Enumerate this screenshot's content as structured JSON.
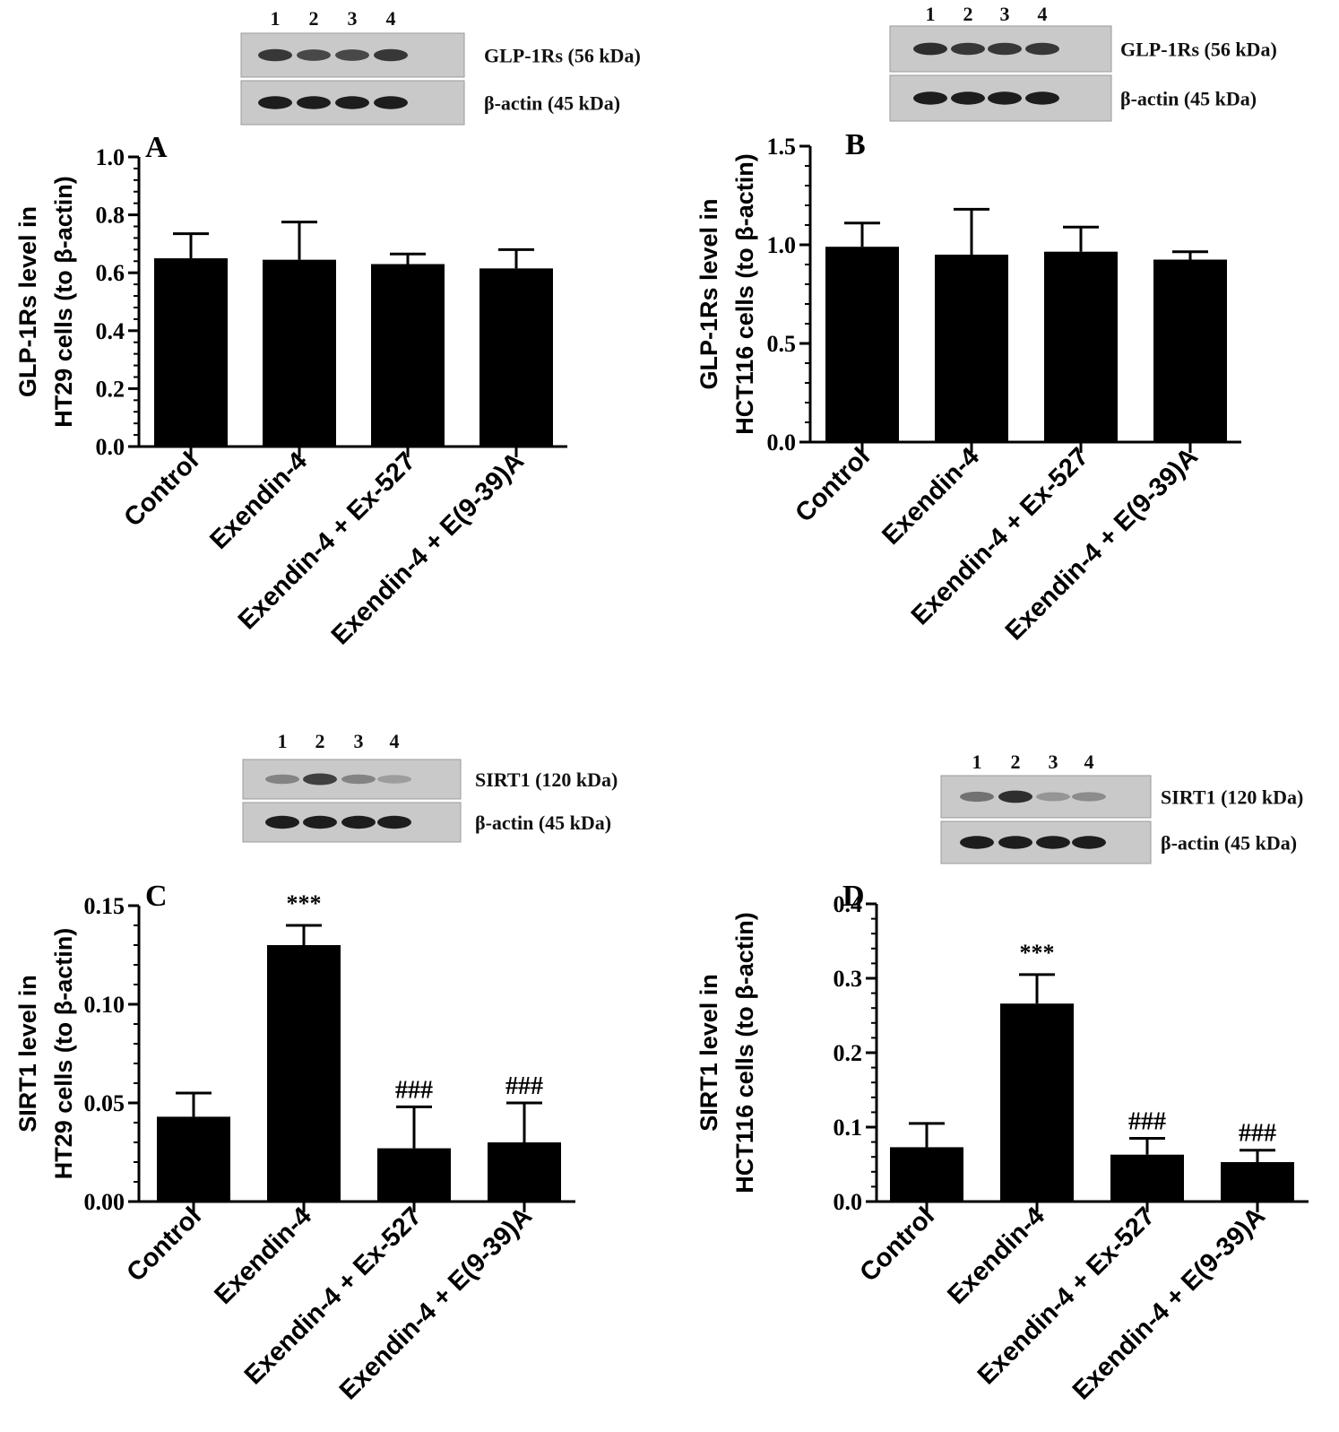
{
  "panels": [
    {
      "id": "A",
      "blot": {
        "lanes": [
          "1",
          "2",
          "3",
          "4"
        ],
        "rows": [
          {
            "label": "GLP-1Rs (56 kDa)",
            "band_intensity": [
              0.85,
              0.75,
              0.75,
              0.85
            ]
          },
          {
            "label": "β-actin (45 kDa)",
            "band_intensity": [
              1.0,
              1.0,
              1.0,
              1.0
            ]
          }
        ]
      },
      "chart_data": {
        "type": "bar",
        "panel_label": "A",
        "ylabel_lines": [
          "GLP-1Rs level in",
          "HT29 cells (to β-actin)"
        ],
        "categories": [
          "Control",
          "Exendin-4",
          "Exendin-4 + Ex-527",
          "Exendin-4 + E(9-39)A"
        ],
        "values": [
          0.65,
          0.645,
          0.63,
          0.615
        ],
        "errors": [
          0.085,
          0.13,
          0.035,
          0.065
        ],
        "annotations": [
          "",
          "",
          "",
          ""
        ],
        "ylim": [
          0,
          1.0
        ],
        "yticks": [
          0,
          0.2,
          0.4,
          0.6,
          0.8,
          1.0
        ],
        "ytick_labels": [
          "0.0",
          "0.2",
          "0.4",
          "0.6",
          "0.8",
          "1.0"
        ]
      }
    },
    {
      "id": "B",
      "blot": {
        "lanes": [
          "1",
          "2",
          "3",
          "4"
        ],
        "rows": [
          {
            "label": "GLP-1Rs (56 kDa)",
            "band_intensity": [
              0.9,
              0.85,
              0.85,
              0.85
            ]
          },
          {
            "label": "β-actin (45 kDa)",
            "band_intensity": [
              1.0,
              1.0,
              1.0,
              1.0
            ]
          }
        ]
      },
      "chart_data": {
        "type": "bar",
        "panel_label": "B",
        "ylabel_lines": [
          "GLP-1Rs level in",
          "HCT116 cells (to β-actin)"
        ],
        "categories": [
          "Control",
          "Exendin-4",
          "Exendin-4 + Ex-527",
          "Exendin-4 + E(9-39)A"
        ],
        "values": [
          0.99,
          0.95,
          0.965,
          0.925
        ],
        "errors": [
          0.12,
          0.23,
          0.125,
          0.04
        ],
        "annotations": [
          "",
          "",
          "",
          ""
        ],
        "ylim": [
          0,
          1.5
        ],
        "yticks": [
          0,
          0.5,
          1.0,
          1.5
        ],
        "ytick_labels": [
          "0.0",
          "0.5",
          "1.0",
          "1.5"
        ]
      }
    },
    {
      "id": "C",
      "blot": {
        "lanes": [
          "1",
          "2",
          "3",
          "4"
        ],
        "rows": [
          {
            "label": "SIRT1 (120 kDa)",
            "band_intensity": [
              0.4,
              0.8,
              0.4,
              0.25
            ]
          },
          {
            "label": "β-actin (45 kDa)",
            "band_intensity": [
              1.0,
              1.0,
              1.0,
              1.0
            ]
          }
        ]
      },
      "chart_data": {
        "type": "bar",
        "panel_label": "C",
        "ylabel_lines": [
          "SIRT1 level in",
          "HT29 cells (to β-actin)"
        ],
        "categories": [
          "Control",
          "Exendin-4",
          "Exendin-4 + Ex-527",
          "Exendin-4 + E(9-39)A"
        ],
        "values": [
          0.043,
          0.13,
          0.027,
          0.03
        ],
        "errors": [
          0.012,
          0.01,
          0.021,
          0.02
        ],
        "annotations": [
          "",
          "***",
          "###",
          "###"
        ],
        "ylim": [
          0,
          0.15
        ],
        "yticks": [
          0,
          0.05,
          0.1,
          0.15
        ],
        "ytick_labels": [
          "0.00",
          "0.05",
          "0.10",
          "0.15"
        ]
      }
    },
    {
      "id": "D",
      "blot": {
        "lanes": [
          "1",
          "2",
          "3",
          "4"
        ],
        "rows": [
          {
            "label": "SIRT1 (120 kDa)",
            "band_intensity": [
              0.5,
              0.9,
              0.3,
              0.35
            ]
          },
          {
            "label": "β-actin (45 kDa)",
            "band_intensity": [
              1.0,
              1.0,
              1.0,
              1.0
            ]
          }
        ]
      },
      "chart_data": {
        "type": "bar",
        "panel_label": "D",
        "ylabel_lines": [
          "SIRT1 level in",
          "HCT116 cells (to β-actin)"
        ],
        "categories": [
          "Control",
          "Exendin-4",
          "Exendin-4 + Ex-527",
          "Exendin-4 + E(9-39)A"
        ],
        "values": [
          0.073,
          0.266,
          0.063,
          0.053
        ],
        "errors": [
          0.032,
          0.039,
          0.022,
          0.016
        ],
        "annotations": [
          "",
          "***",
          "###",
          "###"
        ],
        "ylim": [
          0,
          0.4
        ],
        "yticks": [
          0,
          0.1,
          0.2,
          0.3,
          0.4
        ],
        "ytick_labels": [
          "0.0",
          "0.1",
          "0.2",
          "0.3",
          "0.4"
        ]
      }
    }
  ]
}
